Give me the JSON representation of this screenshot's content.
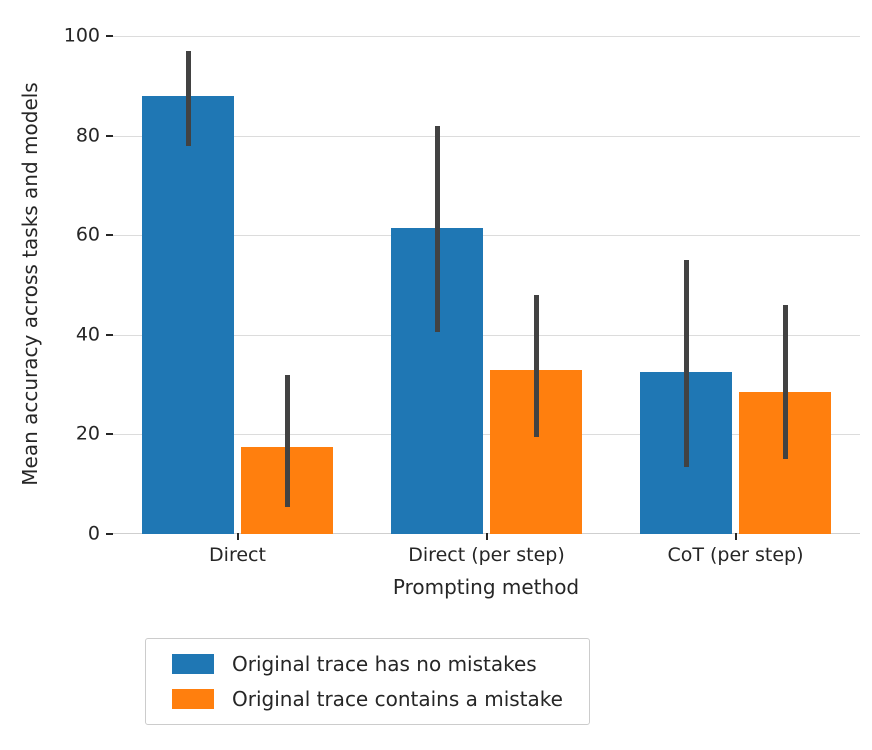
{
  "figure": {
    "background": "#ffffff"
  },
  "chart_data": {
    "type": "bar",
    "title": "",
    "xlabel": "Prompting method",
    "ylabel": "Mean accuracy across tasks and models",
    "ylim": [
      0,
      100
    ],
    "yticks": [
      0,
      20,
      40,
      60,
      80,
      100
    ],
    "categories": [
      "Direct",
      "Direct (per step)",
      "CoT (per step)"
    ],
    "series": [
      {
        "name": "Original trace has no mistakes",
        "color": "#1f77b4",
        "values": [
          88,
          61.5,
          32.5
        ],
        "error_low": [
          78,
          40.5,
          13.5
        ],
        "error_high": [
          97,
          82,
          55
        ]
      },
      {
        "name": "Original trace contains a mistake",
        "color": "#ff7f0e",
        "values": [
          17.5,
          33,
          28.5
        ],
        "error_low": [
          5.5,
          19.5,
          15
        ],
        "error_high": [
          32,
          48,
          46
        ]
      }
    ],
    "error_bar_color": "#424242",
    "grid": true,
    "grid_color": "#dcdcdc",
    "legend_position": "bottom-left-outside",
    "legend_border_color": "#cccccc"
  }
}
